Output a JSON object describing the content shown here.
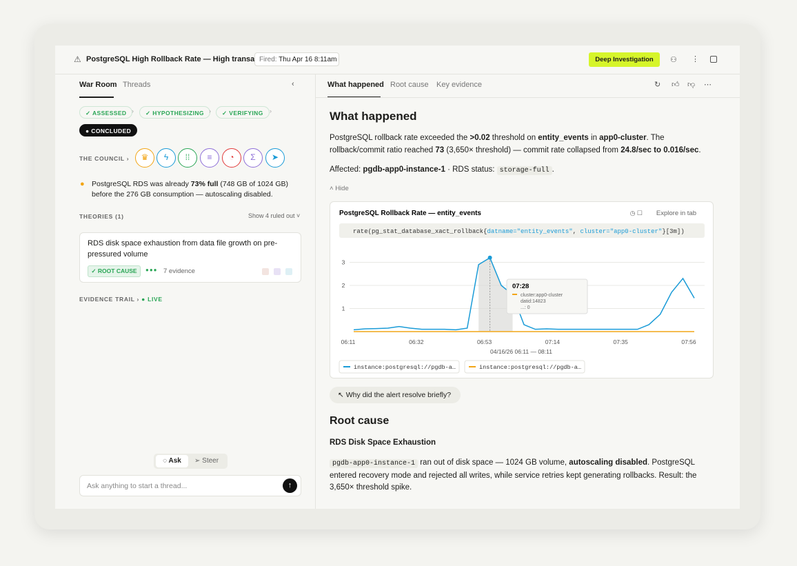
{
  "header": {
    "title": "PostgreSQL High Rollback Rate — High transac...",
    "fired_label": "Fired:",
    "fired_value": "Thu Apr 16 8:11am",
    "action": "Deep Investigation"
  },
  "left_tabs": [
    "War Room",
    "Threads"
  ],
  "stages": [
    "ASSESSED",
    "HYPOTHESIZING",
    "VERIFYING",
    "CONCLUDED"
  ],
  "council": {
    "label": "THE COUNCIL"
  },
  "insight": [
    "PostgreSQL RDS was already ",
    "73% full",
    " (748 GB of 1024 GB) before the 276 GB consumption — autoscaling disabled."
  ],
  "theories": {
    "label": "THEORIES (1)",
    "toggle": "Show 4 ruled out",
    "card": {
      "title": "RDS disk space exhaustion from data file growth on pre-pressured volume",
      "badge": "ROOT CAUSE",
      "evidence": "7 evidence"
    }
  },
  "evidence_trail": {
    "label": "EVIDENCE TRAIL",
    "status": "LIVE"
  },
  "composer": {
    "modes": [
      "Ask",
      "Steer"
    ],
    "placeholder": "Ask anything to start a thread..."
  },
  "right_tabs": [
    "What happened",
    "Root cause",
    "Key evidence"
  ],
  "what_happened": {
    "heading": "What happened",
    "paragraph": [
      "PostgreSQL rollback rate exceeded the ",
      ">0.02",
      " threshold on ",
      "entity_events",
      " in ",
      "app0-cluster",
      ". The rollback/commit ratio reached ",
      "73",
      " (3,650× threshold) — commit rate collapsed from ",
      "24.8/sec to 0.016/sec",
      "."
    ],
    "affected": [
      "Affected: ",
      "pgdb-app0-instance-1",
      " · RDS status: ",
      "storage-full",
      "."
    ],
    "hide": "Hide"
  },
  "chart_data": {
    "type": "line",
    "title": "PostgreSQL Rollback Rate — entity_events",
    "explore": "Explore in tab",
    "query": [
      "rate(pg_stat_database_xact_rollback{",
      "datname=\"entity_events\"",
      ", ",
      "cluster=\"app0-cluster\"",
      "}[3m])"
    ],
    "categories": [
      "06:11",
      null,
      null,
      null,
      null,
      null,
      "06:32",
      null,
      null,
      null,
      null,
      null,
      "06:53",
      null,
      null,
      null,
      null,
      null,
      "07:14",
      null,
      null,
      null,
      null,
      null,
      "07:35",
      null,
      null,
      null,
      null,
      null,
      "07:56"
    ],
    "series": [
      {
        "name": "instance:postgresql://pgdb-a…",
        "color": "#1a9bd7",
        "values": [
          0.08,
          0.12,
          0.13,
          0.15,
          0.22,
          0.15,
          0.1,
          0.1,
          0.1,
          0.08,
          0.15,
          2.9,
          3.2,
          2.0,
          1.6,
          0.3,
          0.1,
          0.12,
          0.1,
          0.1,
          0.1,
          0.1,
          0.1,
          0.1,
          0.1,
          0.1,
          0.3,
          0.75,
          1.7,
          2.3,
          1.45
        ]
      },
      {
        "name": "instance:postgresql://pgdb-a…",
        "color": "#f2a516",
        "values": [
          0,
          0,
          0,
          0,
          0,
          0,
          0,
          0,
          0,
          0,
          0,
          0,
          0,
          0,
          0,
          0,
          0,
          0,
          0,
          0,
          0,
          0,
          0,
          0,
          0,
          0,
          0,
          0,
          0,
          0,
          0
        ]
      }
    ],
    "ylim": [
      0,
      3.2
    ],
    "yticks": [
      1,
      2,
      3
    ],
    "grid": true,
    "range_label": "04/16/26 06:11 — 08:11",
    "tooltip": {
      "time": "07:28",
      "lines": [
        "cluster:app0-cluster",
        "datid:14823",
        "...: 0"
      ]
    }
  },
  "followup": "Why did the alert resolve briefly?",
  "root_cause": {
    "heading": "Root cause",
    "subheading": "RDS Disk Space Exhaustion",
    "paragraph": [
      "pgdb-app0-instance-1",
      " ran out of disk space — 1024 GB volume, ",
      "autoscaling disabled",
      ". PostgreSQL entered recovery mode and rejected all writes, while service retries kept generating rollbacks. Result: the 3,650× threshold spike."
    ]
  }
}
